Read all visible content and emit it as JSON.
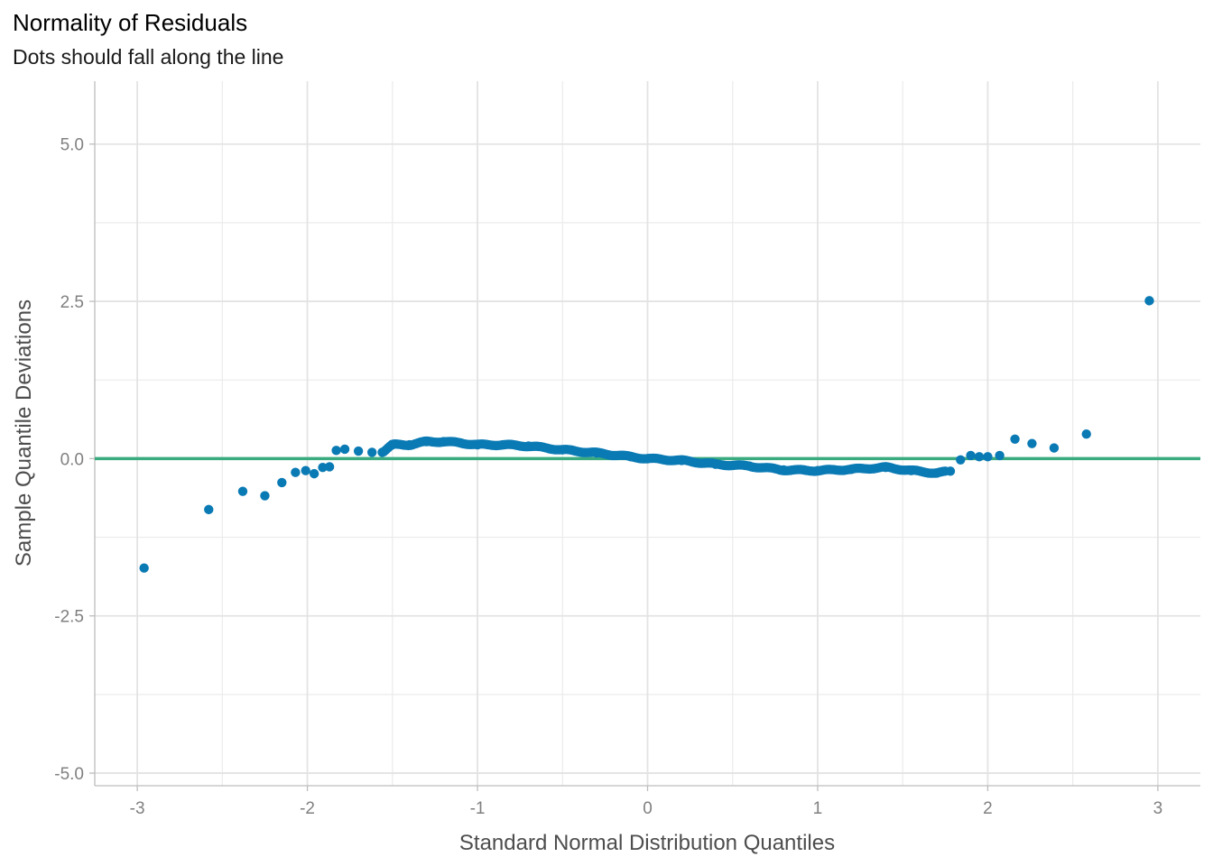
{
  "chart_data": {
    "type": "scatter",
    "title": "Normality of Residuals",
    "subtitle": "Dots should fall along the line",
    "xlabel": "Standard Normal Distribution Quantiles",
    "ylabel": "Sample Quantile Deviations",
    "xlim": [
      -3.25,
      3.25
    ],
    "ylim": [
      -5.2,
      6.0
    ],
    "x_ticks": [
      -3,
      -2,
      -1,
      0,
      1,
      2,
      3
    ],
    "x_tick_labels": [
      "-3",
      "-2",
      "-1",
      "0",
      "1",
      "2",
      "3"
    ],
    "y_ticks": [
      -5,
      -2.5,
      0,
      2.5,
      5
    ],
    "y_tick_labels": [
      "-5.0",
      "-2.5",
      "0.0",
      "2.5",
      "5.0"
    ],
    "grid": true,
    "reference_line": {
      "y": 0,
      "color": "#3aaa7f"
    },
    "point_color": "#0a7ab4",
    "anchors": [
      [
        -2.96,
        -1.74
      ],
      [
        -2.58,
        -0.81
      ],
      [
        -2.38,
        -0.52
      ],
      [
        -2.25,
        -0.59
      ],
      [
        -2.15,
        -0.38
      ],
      [
        -2.07,
        -0.22
      ],
      [
        -2.01,
        -0.19
      ],
      [
        -1.96,
        -0.24
      ],
      [
        -1.91,
        -0.14
      ],
      [
        -1.87,
        -0.13
      ],
      [
        -1.83,
        0.13
      ],
      [
        -1.78,
        0.15
      ],
      [
        -1.7,
        0.12
      ],
      [
        -1.62,
        0.1
      ],
      [
        -1.56,
        0.1
      ],
      [
        -1.5,
        0.22
      ],
      [
        -1.4,
        0.22
      ],
      [
        -1.3,
        0.27
      ],
      [
        -1.2,
        0.27
      ],
      [
        -1.1,
        0.25
      ],
      [
        -1.0,
        0.22
      ],
      [
        -0.85,
        0.22
      ],
      [
        -0.7,
        0.2
      ],
      [
        -0.5,
        0.14
      ],
      [
        -0.3,
        0.09
      ],
      [
        -0.1,
        0.03
      ],
      [
        0.0,
        0.0
      ],
      [
        0.2,
        -0.03
      ],
      [
        0.4,
        -0.09
      ],
      [
        0.6,
        -0.12
      ],
      [
        0.8,
        -0.18
      ],
      [
        1.0,
        -0.19
      ],
      [
        1.2,
        -0.17
      ],
      [
        1.4,
        -0.14
      ],
      [
        1.55,
        -0.19
      ],
      [
        1.7,
        -0.23
      ],
      [
        1.78,
        -0.2
      ],
      [
        1.84,
        -0.02
      ],
      [
        1.9,
        0.05
      ],
      [
        1.95,
        0.03
      ],
      [
        2.0,
        0.03
      ],
      [
        2.07,
        0.05
      ],
      [
        2.16,
        0.31
      ],
      [
        2.26,
        0.24
      ],
      [
        2.39,
        0.17
      ],
      [
        2.58,
        0.39
      ],
      [
        2.95,
        2.51
      ]
    ]
  }
}
